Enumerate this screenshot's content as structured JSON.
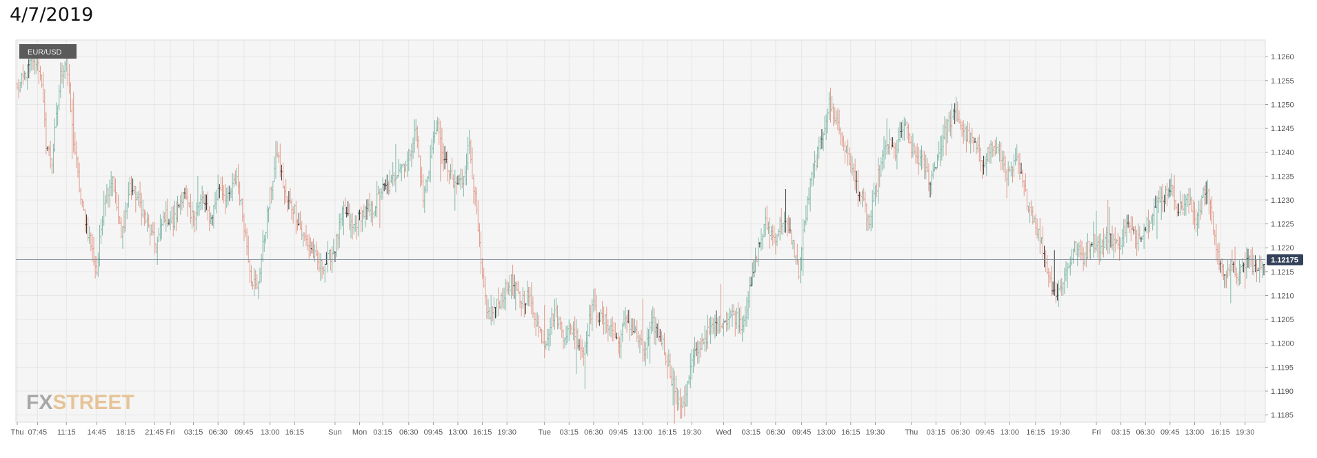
{
  "page": {
    "title": "4/7/2019"
  },
  "brand": {
    "fx": "FX",
    "street": "STREET"
  },
  "colors": {
    "up": "#7fb8a8",
    "down": "#e09a8a",
    "neutral": "#333333",
    "price_line": "#7a8898",
    "price_tag_bg": "#33415a",
    "grid": "#e6e6e6",
    "plot_bg": "#f5f5f5",
    "legend_bg": "#5a5a5a"
  },
  "chart_data": {
    "type": "ohlc",
    "symbol": "EUR/USD",
    "current_price": "1.12175",
    "current_value": 1.12175,
    "ylim": [
      1.11835,
      1.12635
    ],
    "y_ticks": [
      {
        "v": 1.126,
        "label": "1.1260"
      },
      {
        "v": 1.1255,
        "label": "1.1255"
      },
      {
        "v": 1.125,
        "label": "1.1250"
      },
      {
        "v": 1.1245,
        "label": "1.1245"
      },
      {
        "v": 1.124,
        "label": "1.1240"
      },
      {
        "v": 1.1235,
        "label": "1.1235"
      },
      {
        "v": 1.123,
        "label": "1.1230"
      },
      {
        "v": 1.1225,
        "label": "1.1225"
      },
      {
        "v": 1.122,
        "label": "1.1220"
      },
      {
        "v": 1.1215,
        "label": "1.1215"
      },
      {
        "v": 1.121,
        "label": "1.1210"
      },
      {
        "v": 1.1205,
        "label": "1.1205"
      },
      {
        "v": 1.12,
        "label": "1.1200"
      },
      {
        "v": 1.1195,
        "label": "1.1195"
      },
      {
        "v": 1.119,
        "label": "1.1190"
      },
      {
        "v": 1.1185,
        "label": "1.1185"
      }
    ],
    "x_ticks": [
      {
        "label": "Thu",
        "i": 0
      },
      {
        "label": "07:45",
        "i": 14
      },
      {
        "label": "11:15",
        "i": 34
      },
      {
        "label": "14:45",
        "i": 55
      },
      {
        "label": "18:15",
        "i": 75
      },
      {
        "label": "21:45",
        "i": 95
      },
      {
        "label": "Fri",
        "i": 106
      },
      {
        "label": "03:15",
        "i": 122
      },
      {
        "label": "06:30",
        "i": 139
      },
      {
        "label": "09:45",
        "i": 157
      },
      {
        "label": "13:00",
        "i": 175
      },
      {
        "label": "16:15",
        "i": 192
      },
      {
        "label": "Sun",
        "i": 220
      },
      {
        "label": "Mon",
        "i": 237
      },
      {
        "label": "03:15",
        "i": 253
      },
      {
        "label": "06:30",
        "i": 271
      },
      {
        "label": "09:45",
        "i": 288
      },
      {
        "label": "13:00",
        "i": 305
      },
      {
        "label": "16:15",
        "i": 322
      },
      {
        "label": "19:30",
        "i": 339
      },
      {
        "label": "Tue",
        "i": 365
      },
      {
        "label": "03:15",
        "i": 382
      },
      {
        "label": "06:30",
        "i": 399
      },
      {
        "label": "09:45",
        "i": 416
      },
      {
        "label": "13:00",
        "i": 433
      },
      {
        "label": "16:15",
        "i": 450
      },
      {
        "label": "19:30",
        "i": 467
      },
      {
        "label": "Wed",
        "i": 489
      },
      {
        "label": "03:15",
        "i": 508
      },
      {
        "label": "06:30",
        "i": 525
      },
      {
        "label": "09:45",
        "i": 543
      },
      {
        "label": "13:00",
        "i": 560
      },
      {
        "label": "16:15",
        "i": 577
      },
      {
        "label": "19:30",
        "i": 594
      },
      {
        "label": "Thu",
        "i": 619
      },
      {
        "label": "03:15",
        "i": 636
      },
      {
        "label": "06:30",
        "i": 653
      },
      {
        "label": "09:45",
        "i": 670
      },
      {
        "label": "13:00",
        "i": 687
      },
      {
        "label": "16:15",
        "i": 705
      },
      {
        "label": "19:30",
        "i": 722
      },
      {
        "label": "Fri",
        "i": 747
      },
      {
        "label": "03:15",
        "i": 764
      },
      {
        "label": "06:30",
        "i": 781
      },
      {
        "label": "09:45",
        "i": 798
      },
      {
        "label": "13:00",
        "i": 815
      },
      {
        "label": "16:15",
        "i": 833
      },
      {
        "label": "19:30",
        "i": 850
      }
    ],
    "bar_count": 864,
    "close_path": [
      [
        0,
        1.1253
      ],
      [
        5,
        1.1256
      ],
      [
        12,
        1.126
      ],
      [
        16,
        1.1257
      ],
      [
        20,
        1.1242
      ],
      [
        24,
        1.1238
      ],
      [
        30,
        1.1256
      ],
      [
        34,
        1.126
      ],
      [
        38,
        1.1245
      ],
      [
        44,
        1.123
      ],
      [
        50,
        1.1222
      ],
      [
        55,
        1.1215
      ],
      [
        60,
        1.123
      ],
      [
        66,
        1.1235
      ],
      [
        72,
        1.1222
      ],
      [
        78,
        1.1233
      ],
      [
        84,
        1.123
      ],
      [
        90,
        1.1225
      ],
      [
        96,
        1.122
      ],
      [
        102,
        1.1227
      ],
      [
        108,
        1.1225
      ],
      [
        115,
        1.1232
      ],
      [
        120,
        1.1226
      ],
      [
        128,
        1.123
      ],
      [
        134,
        1.1226
      ],
      [
        140,
        1.1233
      ],
      [
        146,
        1.123
      ],
      [
        152,
        1.1235
      ],
      [
        157,
        1.1225
      ],
      [
        162,
        1.1214
      ],
      [
        166,
        1.1211
      ],
      [
        170,
        1.122
      ],
      [
        175,
        1.1231
      ],
      [
        180,
        1.124
      ],
      [
        186,
        1.123
      ],
      [
        192,
        1.1228
      ],
      [
        197,
        1.1223
      ],
      [
        203,
        1.122
      ],
      [
        209,
        1.1216
      ],
      [
        214,
        1.1217
      ],
      [
        220,
        1.122
      ],
      [
        226,
        1.1228
      ],
      [
        232,
        1.1224
      ],
      [
        238,
        1.1227
      ],
      [
        246,
        1.1228
      ],
      [
        252,
        1.1232
      ],
      [
        258,
        1.1233
      ],
      [
        264,
        1.1237
      ],
      [
        270,
        1.1238
      ],
      [
        276,
        1.1245
      ],
      [
        281,
        1.123
      ],
      [
        285,
        1.1237
      ],
      [
        290,
        1.1246
      ],
      [
        296,
        1.1238
      ],
      [
        302,
        1.1233
      ],
      [
        308,
        1.1234
      ],
      [
        313,
        1.1242
      ],
      [
        318,
        1.1227
      ],
      [
        321,
        1.1216
      ],
      [
        325,
        1.1206
      ],
      [
        330,
        1.1207
      ],
      [
        336,
        1.121
      ],
      [
        342,
        1.1213
      ],
      [
        348,
        1.1209
      ],
      [
        354,
        1.121
      ],
      [
        360,
        1.1204
      ],
      [
        365,
        1.12
      ],
      [
        372,
        1.1207
      ],
      [
        378,
        1.1202
      ],
      [
        385,
        1.1203
      ],
      [
        392,
        1.1198
      ],
      [
        398,
        1.1208
      ],
      [
        404,
        1.1205
      ],
      [
        410,
        1.1204
      ],
      [
        416,
        1.12
      ],
      [
        422,
        1.1205
      ],
      [
        428,
        1.1202
      ],
      [
        434,
        1.1198
      ],
      [
        440,
        1.1204
      ],
      [
        446,
        1.1201
      ],
      [
        452,
        1.1194
      ],
      [
        458,
        1.1187
      ],
      [
        462,
        1.1188
      ],
      [
        467,
        1.1196
      ],
      [
        473,
        1.12
      ],
      [
        478,
        1.1202
      ],
      [
        484,
        1.1204
      ],
      [
        490,
        1.1205
      ],
      [
        496,
        1.1206
      ],
      [
        502,
        1.1204
      ],
      [
        508,
        1.1212
      ],
      [
        513,
        1.122
      ],
      [
        518,
        1.1225
      ],
      [
        524,
        1.1222
      ],
      [
        530,
        1.1226
      ],
      [
        536,
        1.1222
      ],
      [
        541,
        1.1215
      ],
      [
        545,
        1.1225
      ],
      [
        550,
        1.1235
      ],
      [
        556,
        1.1242
      ],
      [
        562,
        1.125
      ],
      [
        568,
        1.1246
      ],
      [
        574,
        1.124
      ],
      [
        580,
        1.1234
      ],
      [
        585,
        1.123
      ],
      [
        590,
        1.1225
      ],
      [
        596,
        1.1235
      ],
      [
        602,
        1.1242
      ],
      [
        608,
        1.124
      ],
      [
        614,
        1.1246
      ],
      [
        620,
        1.124
      ],
      [
        626,
        1.1238
      ],
      [
        632,
        1.1234
      ],
      [
        638,
        1.124
      ],
      [
        644,
        1.1246
      ],
      [
        650,
        1.1248
      ],
      [
        656,
        1.1244
      ],
      [
        662,
        1.1242
      ],
      [
        668,
        1.1238
      ],
      [
        674,
        1.1241
      ],
      [
        680,
        1.124
      ],
      [
        686,
        1.1235
      ],
      [
        692,
        1.1238
      ],
      [
        698,
        1.1231
      ],
      [
        704,
        1.1226
      ],
      [
        710,
        1.122
      ],
      [
        715,
        1.1213
      ],
      [
        720,
        1.121
      ],
      [
        726,
        1.1215
      ],
      [
        732,
        1.122
      ],
      [
        738,
        1.1218
      ],
      [
        744,
        1.1222
      ],
      [
        750,
        1.122
      ],
      [
        756,
        1.1223
      ],
      [
        762,
        1.122
      ],
      [
        768,
        1.1225
      ],
      [
        774,
        1.1222
      ],
      [
        780,
        1.1224
      ],
      [
        786,
        1.1228
      ],
      [
        792,
        1.123
      ],
      [
        798,
        1.1233
      ],
      [
        804,
        1.1228
      ],
      [
        810,
        1.123
      ],
      [
        816,
        1.1226
      ],
      [
        822,
        1.1232
      ],
      [
        826,
        1.1229
      ],
      [
        830,
        1.122
      ],
      [
        834,
        1.1215
      ],
      [
        840,
        1.1216
      ],
      [
        846,
        1.1214
      ],
      [
        852,
        1.1218
      ],
      [
        858,
        1.1215
      ],
      [
        863,
        1.12175
      ]
    ]
  }
}
